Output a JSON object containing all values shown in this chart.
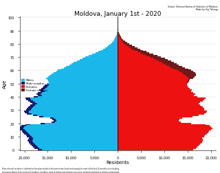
{
  "title": "Moldova, January 1st - 2020",
  "source_text": "Source: National Bureau of Statistics of Moldova\nMade by: Kaj Tallungs",
  "xlabel": "Residents",
  "ylabel": "Age",
  "footnote": "Place of usual residence is defined as the place at which the person has lived continuously for most of the last 12 months, not including\ntemporary absences for poses of recreation, holidays, visits to friends and relatives, business, medical treatment or religious pilgrimage.",
  "legend_labels": [
    "Males",
    "Male surplus",
    "Females",
    "Female surplus"
  ],
  "legend_colors": [
    "#1ab7ea",
    "#1a1a6e",
    "#ee1111",
    "#6e1a1a"
  ],
  "male_color": "#1ab7ea",
  "male_surplus_color": "#1a1a6e",
  "female_color": "#ee1111",
  "female_surplus_color": "#6e1a1a",
  "ages": [
    0,
    1,
    2,
    3,
    4,
    5,
    6,
    7,
    8,
    9,
    10,
    11,
    12,
    13,
    14,
    15,
    16,
    17,
    18,
    19,
    20,
    21,
    22,
    23,
    24,
    25,
    26,
    27,
    28,
    29,
    30,
    31,
    32,
    33,
    34,
    35,
    36,
    37,
    38,
    39,
    40,
    41,
    42,
    43,
    44,
    45,
    46,
    47,
    48,
    49,
    50,
    51,
    52,
    53,
    54,
    55,
    56,
    57,
    58,
    59,
    60,
    61,
    62,
    63,
    64,
    65,
    66,
    67,
    68,
    69,
    70,
    71,
    72,
    73,
    74,
    75,
    76,
    77,
    78,
    79,
    80,
    81,
    82,
    83,
    84,
    85,
    86,
    87,
    88,
    89,
    90,
    91,
    92,
    93,
    94,
    95,
    96,
    97,
    98,
    99
  ],
  "males": [
    17200,
    17800,
    18100,
    18400,
    18700,
    19000,
    19100,
    19300,
    19200,
    19100,
    19500,
    19700,
    20100,
    20400,
    20600,
    21000,
    21300,
    21100,
    20700,
    19800,
    16500,
    14200,
    13800,
    14000,
    14500,
    16800,
    18200,
    19500,
    20000,
    20100,
    19600,
    19500,
    19200,
    18900,
    18700,
    18300,
    18700,
    19200,
    19600,
    19800,
    18000,
    17200,
    17500,
    17100,
    16600,
    16800,
    16400,
    16100,
    15900,
    15700,
    15100,
    14800,
    14900,
    15100,
    15300,
    14900,
    14600,
    14200,
    13800,
    13200,
    12800,
    12100,
    11500,
    11100,
    10400,
    9900,
    9400,
    8800,
    8200,
    7600,
    6900,
    6200,
    5500,
    4800,
    4200,
    3600,
    3100,
    2700,
    2300,
    1900,
    1500,
    1200,
    950,
    730,
    560,
    420,
    300,
    210,
    140,
    90,
    60,
    40,
    25,
    15,
    9,
    5,
    3,
    2,
    1,
    1
  ],
  "females": [
    16200,
    16800,
    17100,
    17400,
    17700,
    18000,
    18100,
    18300,
    18200,
    18100,
    18500,
    18700,
    19100,
    19400,
    19600,
    20000,
    20300,
    20100,
    19700,
    18800,
    15700,
    13500,
    13100,
    13300,
    13800,
    16000,
    17300,
    18500,
    19000,
    19100,
    18600,
    18500,
    18200,
    17900,
    17700,
    17300,
    17700,
    18200,
    18600,
    18800,
    17100,
    16300,
    16600,
    16200,
    15700,
    15900,
    15500,
    15200,
    15000,
    14800,
    14900,
    15100,
    15300,
    15500,
    16200,
    16500,
    16800,
    16800,
    16600,
    16200,
    15800,
    15200,
    14400,
    13900,
    13100,
    12600,
    12000,
    11400,
    10700,
    10100,
    9300,
    8500,
    7600,
    6800,
    6100,
    5400,
    4800,
    4200,
    3600,
    3100,
    2500,
    2000,
    1600,
    1200,
    900,
    680,
    490,
    340,
    220,
    140,
    90,
    55,
    33,
    19,
    11,
    6,
    3,
    2,
    1,
    1
  ],
  "xlim": 21000,
  "bar_height": 1.0
}
